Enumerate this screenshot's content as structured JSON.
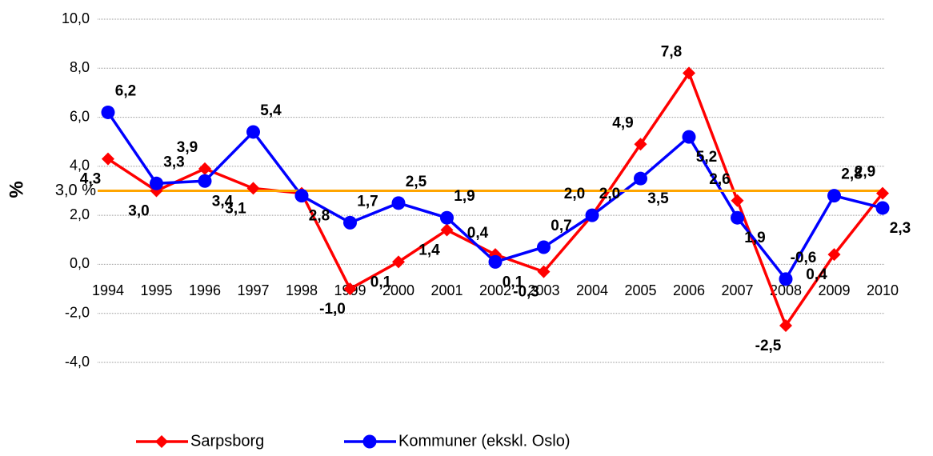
{
  "chart_data": {
    "type": "line",
    "y_label": "%",
    "categories": [
      "1994",
      "1995",
      "1996",
      "1997",
      "1998",
      "1999",
      "2000",
      "2001",
      "2002",
      "2003",
      "2004",
      "2005",
      "2006",
      "2007",
      "2008",
      "2009",
      "2010"
    ],
    "series": [
      {
        "name": "Sarpsborg",
        "color": "#ff0000",
        "label_color": "#8b0000",
        "marker": "diamond",
        "values": [
          4.3,
          3.0,
          3.9,
          3.1,
          2.9,
          -1.0,
          0.1,
          1.4,
          0.4,
          -0.3,
          2.0,
          4.9,
          7.8,
          2.6,
          -2.5,
          0.4,
          2.9
        ],
        "value_labels": [
          "4,3",
          "3,0",
          "3,9",
          "3,1",
          null,
          "-1,0",
          "0,1",
          "1,4",
          "0,4",
          "-0,3",
          "2,0",
          "4,9",
          "7,8",
          "2,6",
          "-2,5",
          "0,4",
          "2,9"
        ]
      },
      {
        "name": "Kommuner (ekskl. Oslo)",
        "color": "#0000ff",
        "label_color": "#333399",
        "marker": "circle",
        "values": [
          6.2,
          3.3,
          3.4,
          5.4,
          2.8,
          1.7,
          2.5,
          1.9,
          0.1,
          0.7,
          2.0,
          3.5,
          5.2,
          1.9,
          -0.6,
          2.8,
          2.3
        ],
        "value_labels": [
          "6,2",
          "3,3",
          "3,4",
          "5,4",
          "2,8",
          "1,7",
          "2,5",
          "1,9",
          "0,1",
          "0,7",
          "2,0",
          "3,5",
          "5,2",
          "1,9",
          "-0,6",
          "2,8",
          "2,3"
        ]
      }
    ],
    "reference_line": {
      "value": 3.0,
      "label": "3,0 %",
      "color": "#ffa500"
    },
    "ylim": [
      -4.0,
      10.0
    ],
    "yticks": [
      {
        "value": -4.0,
        "label": "-4,0"
      },
      {
        "value": -2.0,
        "label": "-2,0"
      },
      {
        "value": 0.0,
        "label": "0,0"
      },
      {
        "value": 2.0,
        "label": "2,0"
      },
      {
        "value": 4.0,
        "label": "4,0"
      },
      {
        "value": 6.0,
        "label": "6,0"
      },
      {
        "value": 8.0,
        "label": "8,0"
      },
      {
        "value": 10.0,
        "label": "10,0"
      }
    ],
    "grid": true,
    "legend": "bottom"
  }
}
